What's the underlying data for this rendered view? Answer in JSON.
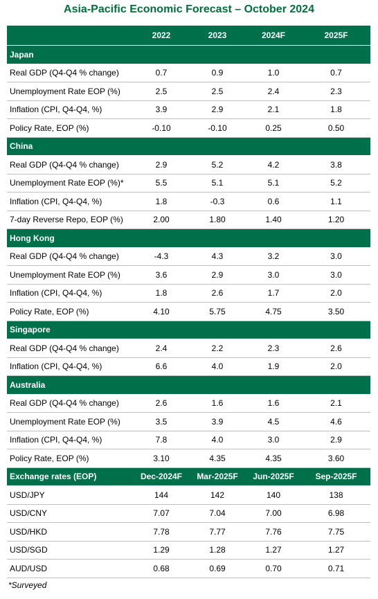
{
  "title": "Asia-Pacific Economic Forecast – October 2024",
  "table": {
    "columns": [
      "2022",
      "2023",
      "2024F",
      "2025F"
    ],
    "sections": [
      {
        "name": "Japan",
        "rows": [
          {
            "label": "Real GDP (Q4-Q4 % change)",
            "values": [
              "0.7",
              "0.9",
              "1.0",
              "0.7"
            ]
          },
          {
            "label": "Unemployment Rate EOP (%)",
            "values": [
              "2.5",
              "2.5",
              "2.4",
              "2.3"
            ]
          },
          {
            "label": "Inflation (CPI, Q4-Q4, %)",
            "values": [
              "3.9",
              "2.9",
              "2.1",
              "1.8"
            ]
          },
          {
            "label": "Policy Rate, EOP (%)",
            "values": [
              "-0.10",
              "-0.10",
              "0.25",
              "0.50"
            ]
          }
        ]
      },
      {
        "name": "China",
        "rows": [
          {
            "label": "Real GDP (Q4-Q4 % change)",
            "values": [
              "2.9",
              "5.2",
              "4.2",
              "3.8"
            ]
          },
          {
            "label": "Unemployment Rate EOP (%)*",
            "values": [
              "5.5",
              "5.1",
              "5.1",
              "5.2"
            ]
          },
          {
            "label": "Inflation (CPI, Q4-Q4, %)",
            "values": [
              "1.8",
              "-0.3",
              "0.6",
              "1.1"
            ]
          },
          {
            "label": "7-day Reverse Repo, EOP (%)",
            "values": [
              "2.00",
              "1.80",
              "1.40",
              "1.20"
            ]
          }
        ]
      },
      {
        "name": "Hong Kong",
        "rows": [
          {
            "label": "Real GDP (Q4-Q4 % change)",
            "values": [
              "-4.3",
              "4.3",
              "3.2",
              "3.0"
            ]
          },
          {
            "label": "Unemployment Rate EOP (%)",
            "values": [
              "3.6",
              "2.9",
              "3.0",
              "3.0"
            ]
          },
          {
            "label": "Inflation (CPI, Q4-Q4, %)",
            "values": [
              "1.8",
              "2.6",
              "1.7",
              "2.0"
            ]
          },
          {
            "label": "Policy Rate, EOP (%)",
            "values": [
              "4.10",
              "5.75",
              "4.75",
              "3.50"
            ]
          }
        ]
      },
      {
        "name": "Singapore",
        "rows": [
          {
            "label": "Real GDP (Q4-Q4 % change)",
            "values": [
              "2.4",
              "2.2",
              "2.3",
              "2.6"
            ]
          },
          {
            "label": "Inflation (CPI, Q4-Q4, %)",
            "values": [
              "6.6",
              "4.0",
              "1.9",
              "2.0"
            ]
          }
        ]
      },
      {
        "name": "Australia",
        "rows": [
          {
            "label": "Real GDP (Q4-Q4 % change)",
            "values": [
              "2.6",
              "1.6",
              "1.6",
              "2.1"
            ]
          },
          {
            "label": "Unemployment Rate EOP (%)",
            "values": [
              "3.5",
              "3.9",
              "4.5",
              "4.6"
            ]
          },
          {
            "label": "Inflation (CPI, Q4-Q4, %)",
            "values": [
              "7.8",
              "4.0",
              "3.0",
              "2.9"
            ]
          },
          {
            "label": "Policy Rate, EOP (%)",
            "values": [
              "3.10",
              "4.35",
              "4.35",
              "3.60"
            ]
          }
        ]
      }
    ],
    "fx": {
      "header": "Exchange rates (EOP)",
      "columns": [
        "Dec-2024F",
        "Mar-2025F",
        "Jun-2025F",
        "Sep-2025F"
      ],
      "rows": [
        {
          "label": "USD/JPY",
          "values": [
            "144",
            "142",
            "140",
            "138"
          ]
        },
        {
          "label": "USD/CNY",
          "values": [
            "7.07",
            "7.04",
            "7.00",
            "6.98"
          ]
        },
        {
          "label": "USD/HKD",
          "values": [
            "7.78",
            "7.77",
            "7.76",
            "7.75"
          ]
        },
        {
          "label": "USD/SGD",
          "values": [
            "1.29",
            "1.28",
            "1.27",
            "1.27"
          ]
        },
        {
          "label": "AUD/USD",
          "values": [
            "0.68",
            "0.69",
            "0.70",
            "0.71"
          ]
        }
      ]
    }
  },
  "footnote": "*Surveyed"
}
